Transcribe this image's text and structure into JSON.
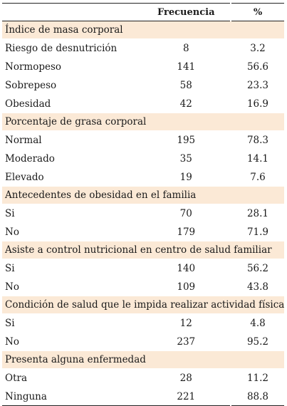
{
  "header": {
    "col1": "",
    "col2": "Frecuencia",
    "col3": "%"
  },
  "sections": [
    {
      "title": "Índice de masa corporal",
      "rows": [
        {
          "label": "Riesgo de desnutrición",
          "freq": "8",
          "pct": "3.2"
        },
        {
          "label": "Normopeso",
          "freq": "141",
          "pct": "56.6"
        },
        {
          "label": "Sobrepeso",
          "freq": "58",
          "pct": "23.3"
        },
        {
          "label": "Obesidad",
          "freq": "42",
          "pct": "16.9"
        }
      ]
    },
    {
      "title": "Porcentaje de grasa corporal",
      "rows": [
        {
          "label": "Normal",
          "freq": "195",
          "pct": "78.3"
        },
        {
          "label": "Moderado",
          "freq": "35",
          "pct": "14.1"
        },
        {
          "label": "Elevado",
          "freq": "19",
          "pct": "7.6"
        }
      ]
    },
    {
      "title": "Antecedentes de obesidad en el familia",
      "rows": [
        {
          "label": "Si",
          "freq": "70",
          "pct": "28.1"
        },
        {
          "label": "No",
          "freq": "179",
          "pct": "71.9"
        }
      ]
    },
    {
      "title": "Asiste a control nutricional en centro de salud familiar",
      "rows": [
        {
          "label": "Si",
          "freq": "140",
          "pct": "56.2"
        },
        {
          "label": "No",
          "freq": "109",
          "pct": "43.8"
        }
      ]
    },
    {
      "title": "Condición de salud que le impida realizar actividad física",
      "rows": [
        {
          "label": "Si",
          "freq": "12",
          "pct": "4.8"
        },
        {
          "label": "No",
          "freq": "237",
          "pct": "95.2"
        }
      ]
    },
    {
      "title": "Presenta alguna enfermedad",
      "rows": [
        {
          "label": "Otra",
          "freq": "28",
          "pct": "11.2"
        },
        {
          "label": "Ninguna",
          "freq": "221",
          "pct": "88.8"
        }
      ]
    }
  ]
}
